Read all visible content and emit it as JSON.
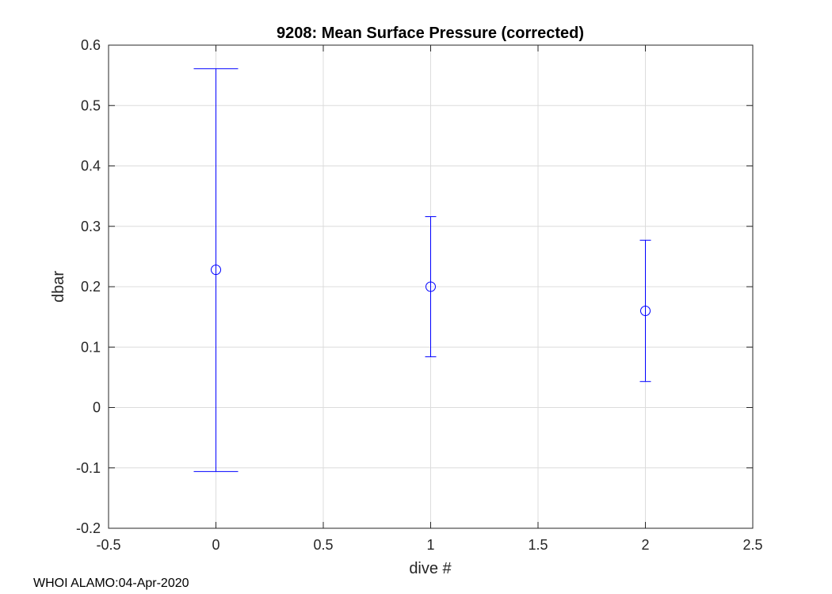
{
  "chart_data": {
    "type": "scatter",
    "title": "9208: Mean Surface Pressure (corrected)",
    "xlabel": "dive #",
    "ylabel": "dbar",
    "xlim": [
      -0.5,
      2.5
    ],
    "ylim": [
      -0.2,
      0.6
    ],
    "xticks": [
      -0.5,
      0,
      0.5,
      1,
      1.5,
      2,
      2.5
    ],
    "xtick_labels": [
      "-0.5",
      "0",
      "0.5",
      "1",
      "1.5",
      "2",
      "2.5"
    ],
    "yticks": [
      -0.2,
      -0.1,
      0,
      0.1,
      0.2,
      0.3,
      0.4,
      0.5,
      0.6
    ],
    "ytick_labels": [
      "-0.2",
      "-0.1",
      "0",
      "0.1",
      "0.2",
      "0.3",
      "0.4",
      "0.5",
      "0.6"
    ],
    "grid": true,
    "marker": "circle",
    "color": "#0000ff",
    "series": [
      {
        "name": "mean surface pressure",
        "x": [
          0,
          1,
          2
        ],
        "y": [
          0.228,
          0.2,
          0.16
        ],
        "err_low": [
          -0.106,
          0.084,
          0.043
        ],
        "err_high": [
          0.561,
          0.316,
          0.277
        ]
      }
    ]
  },
  "footer": {
    "note": "WHOI ALAMO:04-Apr-2020"
  }
}
